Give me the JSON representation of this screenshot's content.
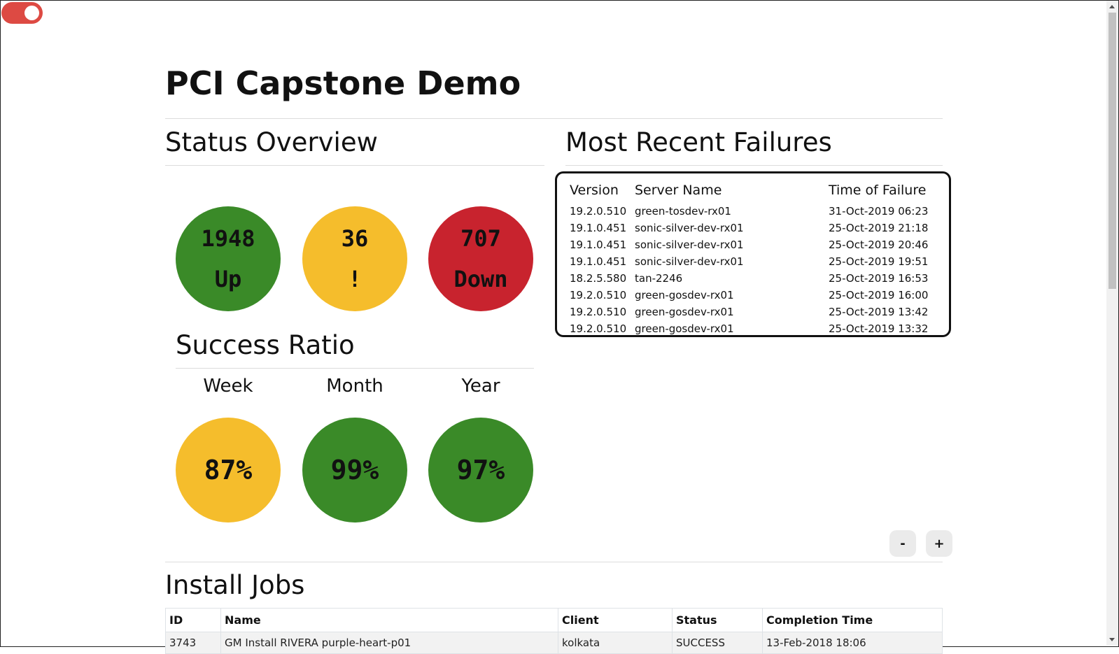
{
  "page": {
    "title": "PCI Capstone Demo"
  },
  "status_overview": {
    "heading": "Status Overview",
    "circles": [
      {
        "value": "1948",
        "label": "Up",
        "color": "#3a8a28"
      },
      {
        "value": "36",
        "label": "!",
        "color": "#f5bd2c"
      },
      {
        "value": "707",
        "label": "Down",
        "color": "#c8232e"
      }
    ]
  },
  "success_ratio": {
    "heading": "Success Ratio",
    "periods": [
      {
        "label": "Week",
        "value": "87%",
        "color": "#f5bd2c"
      },
      {
        "label": "Month",
        "value": "99%",
        "color": "#3a8a28"
      },
      {
        "label": "Year",
        "value": "97%",
        "color": "#3a8a28"
      }
    ]
  },
  "failures": {
    "heading": "Most Recent Failures",
    "columns": [
      "Version",
      "Server Name",
      "Time of Failure"
    ],
    "rows": [
      [
        "19.2.0.510",
        "green-tosdev-rx01",
        "31-Oct-2019 06:23"
      ],
      [
        "19.1.0.451",
        "sonic-silver-dev-rx01",
        "25-Oct-2019 21:18"
      ],
      [
        "19.1.0.451",
        "sonic-silver-dev-rx01",
        "25-Oct-2019 20:46"
      ],
      [
        "19.1.0.451",
        "sonic-silver-dev-rx01",
        "25-Oct-2019 19:51"
      ],
      [
        "18.2.5.580",
        "tan-2246",
        "25-Oct-2019 16:53"
      ],
      [
        "19.2.0.510",
        "green-gosdev-rx01",
        "25-Oct-2019 16:00"
      ],
      [
        "19.2.0.510",
        "green-gosdev-rx01",
        "25-Oct-2019 13:42"
      ],
      [
        "19.2.0.510",
        "green-gosdev-rx01",
        "25-Oct-2019 13:32"
      ]
    ]
  },
  "zoom": {
    "minus_label": "-",
    "plus_label": "+"
  },
  "install_jobs": {
    "heading": "Install Jobs",
    "columns": [
      "ID",
      "Name",
      "Client",
      "Status",
      "Completion Time"
    ],
    "rows": [
      [
        "3743",
        "GM Install RIVERA purple-heart-p01",
        "kolkata",
        "SUCCESS",
        "13-Feb-2018 18:06"
      ]
    ]
  },
  "colors": {
    "toggle": "#dd4a43",
    "green": "#3a8a28",
    "yellow": "#f5bd2c",
    "red": "#c8232e"
  }
}
